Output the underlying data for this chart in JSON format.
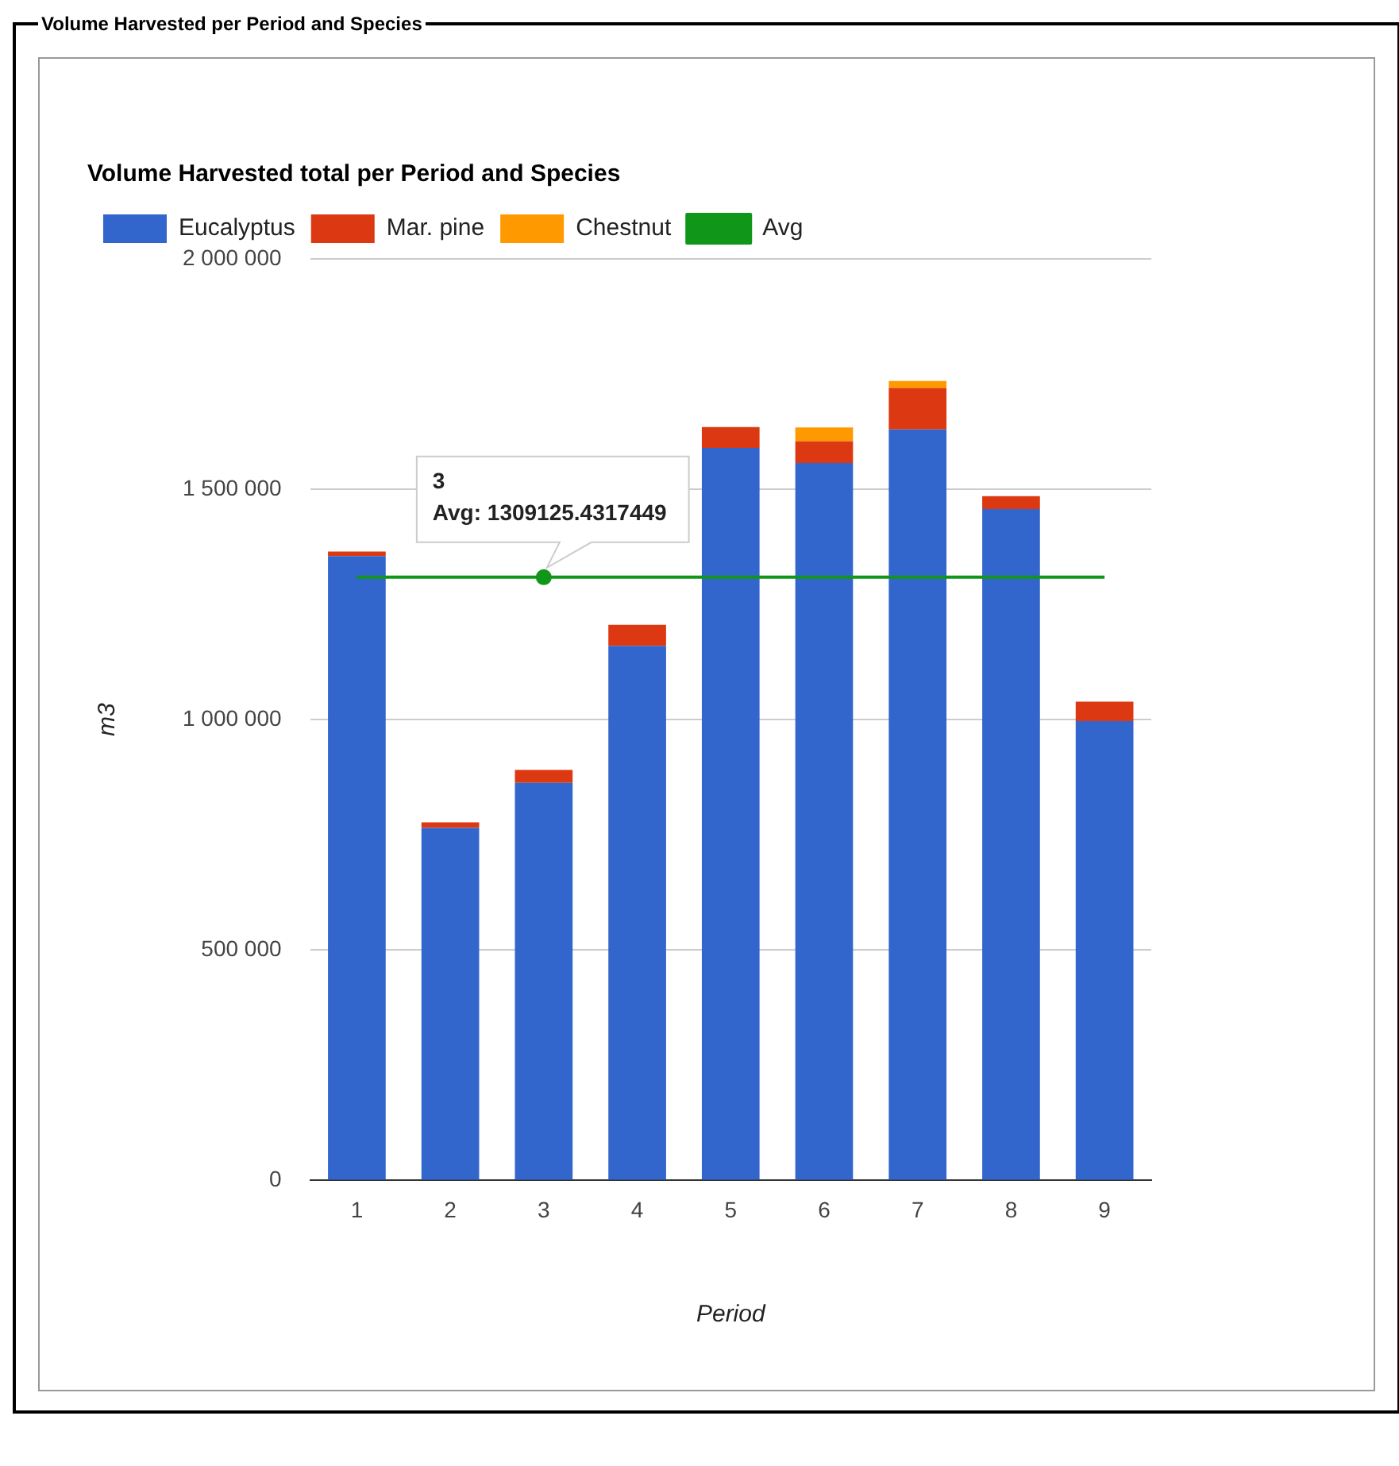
{
  "chart_data": {
    "type": "bar",
    "title": "Volume Harvested per Period and Species",
    "subtitle": "Volume Harvested total per Period and Species",
    "xlabel": "Period",
    "ylabel": "m3",
    "categories": [
      "1",
      "2",
      "3",
      "4",
      "5",
      "6",
      "7",
      "8",
      "9"
    ],
    "stacked": true,
    "series": [
      {
        "name": "Eucalyptus",
        "color": "#3366cc",
        "values": [
          1355000,
          765000,
          863000,
          1160000,
          1590000,
          1557000,
          1630000,
          1457000,
          997000
        ]
      },
      {
        "name": "Mar. pine",
        "color": "#dc3912",
        "values": [
          10000,
          12000,
          28000,
          46000,
          45000,
          47000,
          90000,
          28000,
          42000
        ]
      },
      {
        "name": "Chestnut",
        "color": "#ff9900",
        "values": [
          0,
          0,
          0,
          0,
          0,
          30000,
          15000,
          0,
          0
        ]
      },
      {
        "name": "Avg",
        "type": "line",
        "color": "#109618",
        "values": [
          1309125.4317449,
          1309125.4317449,
          1309125.4317449,
          1309125.4317449,
          1309125.4317449,
          1309125.4317449,
          1309125.4317449,
          1309125.4317449,
          1309125.4317449
        ]
      }
    ],
    "ylim": [
      0,
      2000000
    ],
    "yticks": [
      {
        "value": 0,
        "label": "0"
      },
      {
        "value": 500000,
        "label": "500 000"
      },
      {
        "value": 1000000,
        "label": "1 000 000"
      },
      {
        "value": 1500000,
        "label": "1 500 000"
      },
      {
        "value": 2000000,
        "label": "2 000 000"
      }
    ],
    "grid": "y",
    "legend": "top",
    "marker": "none",
    "line_style": "solid",
    "annotations": [
      {
        "text": "3\nAvg: 1309125.4317449",
        "x": "3",
        "y": 1309125.4317449
      }
    ]
  }
}
